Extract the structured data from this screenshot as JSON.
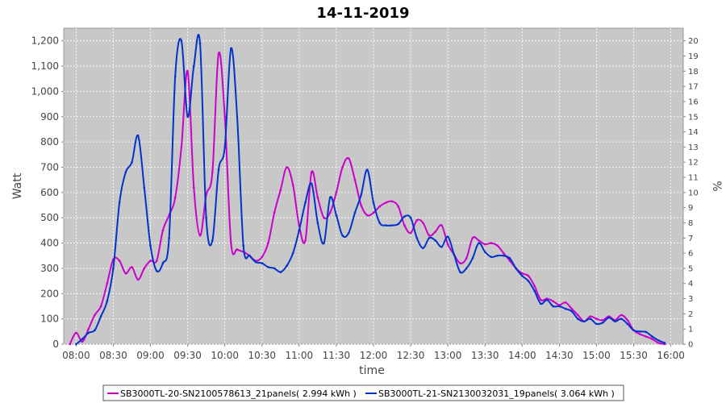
{
  "chart_data": {
    "type": "line",
    "title": "14-11-2019",
    "xlabel": "time",
    "ylabel": "Watt",
    "ylabel_right": "%",
    "xlim": [
      "07:50",
      "16:10"
    ],
    "ylim": [
      0,
      1250
    ],
    "ylim_right": [
      0,
      20.8333
    ],
    "x_ticks": [
      "08:00",
      "08:30",
      "09:00",
      "09:30",
      "10:00",
      "10:30",
      "11:00",
      "11:30",
      "12:00",
      "12:30",
      "13:00",
      "13:30",
      "14:00",
      "14:30",
      "15:00",
      "15:30",
      "16:00"
    ],
    "y_ticks": [
      0,
      100,
      200,
      300,
      400,
      500,
      600,
      700,
      800,
      900,
      1000,
      1100,
      1200
    ],
    "y_tick_labels": [
      "0",
      "100",
      "200",
      "300",
      "400",
      "500",
      "600",
      "700",
      "800",
      "900",
      "1,000",
      "1,100",
      "1,200"
    ],
    "y_ticks_right": [
      "0",
      "1",
      "2",
      "3",
      "4",
      "5",
      "6",
      "7",
      "8",
      "9",
      "10",
      "11",
      "12",
      "13",
      "14",
      "15",
      "16",
      "17",
      "18",
      "19",
      "20"
    ],
    "grid": true,
    "legend_position": "bottom",
    "series": [
      {
        "name": "SB3000TL-20-SN2100578613_21panels( 2.994 kWh )",
        "color": "#cc00cc",
        "points": [
          [
            "07:55",
            0
          ],
          [
            "08:00",
            45
          ],
          [
            "08:05",
            10
          ],
          [
            "08:10",
            60
          ],
          [
            "08:15",
            115
          ],
          [
            "08:20",
            150
          ],
          [
            "08:25",
            240
          ],
          [
            "08:30",
            335
          ],
          [
            "08:35",
            330
          ],
          [
            "08:40",
            280
          ],
          [
            "08:45",
            305
          ],
          [
            "08:50",
            255
          ],
          [
            "08:55",
            300
          ],
          [
            "09:00",
            330
          ],
          [
            "09:05",
            330
          ],
          [
            "09:10",
            450
          ],
          [
            "09:15",
            510
          ],
          [
            "09:20",
            580
          ],
          [
            "09:25",
            780
          ],
          [
            "09:30",
            1080
          ],
          [
            "09:35",
            620
          ],
          [
            "09:40",
            430
          ],
          [
            "09:45",
            590
          ],
          [
            "09:50",
            680
          ],
          [
            "09:55",
            1150
          ],
          [
            "10:00",
            900
          ],
          [
            "10:05",
            400
          ],
          [
            "10:10",
            375
          ],
          [
            "10:15",
            365
          ],
          [
            "10:20",
            350
          ],
          [
            "10:25",
            330
          ],
          [
            "10:30",
            345
          ],
          [
            "10:35",
            400
          ],
          [
            "10:40",
            520
          ],
          [
            "10:45",
            610
          ],
          [
            "10:50",
            700
          ],
          [
            "10:55",
            630
          ],
          [
            "11:00",
            470
          ],
          [
            "11:05",
            410
          ],
          [
            "11:10",
            680
          ],
          [
            "11:15",
            580
          ],
          [
            "11:20",
            500
          ],
          [
            "11:25",
            520
          ],
          [
            "11:30",
            600
          ],
          [
            "11:35",
            700
          ],
          [
            "11:40",
            735
          ],
          [
            "11:45",
            650
          ],
          [
            "11:50",
            550
          ],
          [
            "11:55",
            510
          ],
          [
            "12:00",
            520
          ],
          [
            "12:05",
            545
          ],
          [
            "12:10",
            560
          ],
          [
            "12:15",
            565
          ],
          [
            "12:20",
            545
          ],
          [
            "12:25",
            470
          ],
          [
            "12:30",
            440
          ],
          [
            "12:35",
            490
          ],
          [
            "12:40",
            480
          ],
          [
            "12:45",
            430
          ],
          [
            "12:50",
            445
          ],
          [
            "12:55",
            470
          ],
          [
            "13:00",
            395
          ],
          [
            "13:05",
            355
          ],
          [
            "13:10",
            320
          ],
          [
            "13:15",
            340
          ],
          [
            "13:20",
            420
          ],
          [
            "13:25",
            410
          ],
          [
            "13:30",
            395
          ],
          [
            "13:35",
            400
          ],
          [
            "13:40",
            390
          ],
          [
            "13:45",
            360
          ],
          [
            "13:50",
            330
          ],
          [
            "13:55",
            300
          ],
          [
            "14:00",
            280
          ],
          [
            "14:05",
            270
          ],
          [
            "14:10",
            230
          ],
          [
            "14:15",
            175
          ],
          [
            "14:20",
            180
          ],
          [
            "14:25",
            170
          ],
          [
            "14:30",
            155
          ],
          [
            "14:35",
            165
          ],
          [
            "14:40",
            140
          ],
          [
            "14:45",
            115
          ],
          [
            "14:50",
            90
          ],
          [
            "14:55",
            110
          ],
          [
            "15:00",
            100
          ],
          [
            "15:05",
            95
          ],
          [
            "15:10",
            110
          ],
          [
            "15:15",
            95
          ],
          [
            "15:20",
            115
          ],
          [
            "15:25",
            95
          ],
          [
            "15:30",
            55
          ],
          [
            "15:35",
            40
          ],
          [
            "15:40",
            30
          ],
          [
            "15:45",
            20
          ],
          [
            "15:50",
            5
          ],
          [
            "15:55",
            0
          ]
        ]
      },
      {
        "name": "SB3000TL-21-SN2130032031_19panels( 3.064 kWh )",
        "color": "#0033cc",
        "points": [
          [
            "08:00",
            0
          ],
          [
            "08:05",
            20
          ],
          [
            "08:10",
            45
          ],
          [
            "08:15",
            55
          ],
          [
            "08:20",
            110
          ],
          [
            "08:25",
            170
          ],
          [
            "08:30",
            300
          ],
          [
            "08:35",
            560
          ],
          [
            "08:40",
            680
          ],
          [
            "08:45",
            720
          ],
          [
            "08:50",
            825
          ],
          [
            "08:55",
            620
          ],
          [
            "09:00",
            390
          ],
          [
            "09:05",
            290
          ],
          [
            "09:10",
            320
          ],
          [
            "09:15",
            420
          ],
          [
            "09:20",
            1060
          ],
          [
            "09:25",
            1200
          ],
          [
            "09:30",
            900
          ],
          [
            "09:35",
            1100
          ],
          [
            "09:40",
            1190
          ],
          [
            "09:45",
            500
          ],
          [
            "09:50",
            410
          ],
          [
            "09:55",
            690
          ],
          [
            "10:00",
            780
          ],
          [
            "10:05",
            1170
          ],
          [
            "10:10",
            900
          ],
          [
            "10:15",
            390
          ],
          [
            "10:20",
            350
          ],
          [
            "10:25",
            325
          ],
          [
            "10:30",
            320
          ],
          [
            "10:35",
            305
          ],
          [
            "10:40",
            300
          ],
          [
            "10:45",
            285
          ],
          [
            "10:50",
            310
          ],
          [
            "10:55",
            360
          ],
          [
            "11:00",
            450
          ],
          [
            "11:05",
            560
          ],
          [
            "11:10",
            635
          ],
          [
            "11:15",
            480
          ],
          [
            "11:20",
            400
          ],
          [
            "11:25",
            580
          ],
          [
            "11:30",
            510
          ],
          [
            "11:35",
            430
          ],
          [
            "11:40",
            440
          ],
          [
            "11:45",
            520
          ],
          [
            "11:50",
            590
          ],
          [
            "11:55",
            690
          ],
          [
            "12:00",
            560
          ],
          [
            "12:05",
            480
          ],
          [
            "12:10",
            470
          ],
          [
            "12:15",
            470
          ],
          [
            "12:20",
            475
          ],
          [
            "12:25",
            505
          ],
          [
            "12:30",
            500
          ],
          [
            "12:35",
            420
          ],
          [
            "12:40",
            380
          ],
          [
            "12:45",
            420
          ],
          [
            "12:50",
            410
          ],
          [
            "12:55",
            385
          ],
          [
            "13:00",
            425
          ],
          [
            "13:05",
            355
          ],
          [
            "13:10",
            285
          ],
          [
            "13:15",
            300
          ],
          [
            "13:20",
            340
          ],
          [
            "13:25",
            400
          ],
          [
            "13:30",
            365
          ],
          [
            "13:35",
            345
          ],
          [
            "13:40",
            350
          ],
          [
            "13:45",
            350
          ],
          [
            "13:50",
            340
          ],
          [
            "13:55",
            300
          ],
          [
            "14:00",
            270
          ],
          [
            "14:05",
            250
          ],
          [
            "14:10",
            210
          ],
          [
            "14:15",
            160
          ],
          [
            "14:20",
            175
          ],
          [
            "14:25",
            150
          ],
          [
            "14:30",
            150
          ],
          [
            "14:35",
            140
          ],
          [
            "14:40",
            130
          ],
          [
            "14:45",
            100
          ],
          [
            "14:50",
            90
          ],
          [
            "14:55",
            100
          ],
          [
            "15:00",
            80
          ],
          [
            "15:05",
            85
          ],
          [
            "15:10",
            105
          ],
          [
            "15:15",
            90
          ],
          [
            "15:20",
            100
          ],
          [
            "15:25",
            80
          ],
          [
            "15:30",
            55
          ],
          [
            "15:35",
            50
          ],
          [
            "15:40",
            48
          ],
          [
            "15:45",
            30
          ],
          [
            "15:50",
            15
          ],
          [
            "15:55",
            5
          ]
        ]
      }
    ]
  }
}
